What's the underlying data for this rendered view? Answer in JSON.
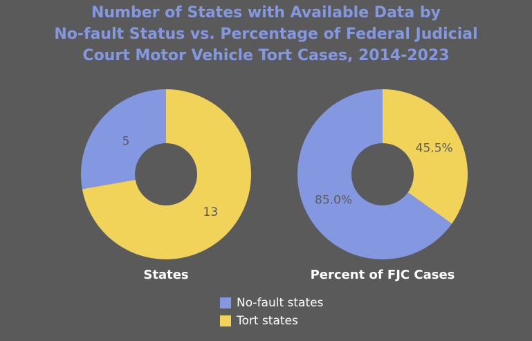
{
  "chart_data": {
    "type": "pie",
    "title_lines": [
      "Number of States with Available Data by",
      "No-fault Status vs. Percentage of Federal Judicial",
      "Court Motor Vehicle Tort Cases, 2014-2023"
    ],
    "charts": [
      {
        "label": "States",
        "slices": [
          {
            "name": "No-fault states",
            "value": 5,
            "display": "5"
          },
          {
            "name": "Tort states",
            "value": 13,
            "display": "13"
          }
        ]
      },
      {
        "label": "Percent of FJC Cases",
        "slices": [
          {
            "name": "No-fault states",
            "value": 85.0,
            "display": "85.0%"
          },
          {
            "name": "Tort states",
            "value": 45.5,
            "display": "45.5%"
          }
        ]
      }
    ],
    "legend": {
      "position": "bottom-center",
      "items": [
        {
          "name": "No-fault states",
          "color": "#8398e0"
        },
        {
          "name": "Tort states",
          "color": "#f1d35a"
        }
      ]
    },
    "colors": {
      "background": "#5a5a5a",
      "no_fault": "#8398e0",
      "tort": "#f1d35a",
      "title": "#8398e0",
      "value_label": "#5a5a5a",
      "chart_label": "#ffffff"
    }
  }
}
